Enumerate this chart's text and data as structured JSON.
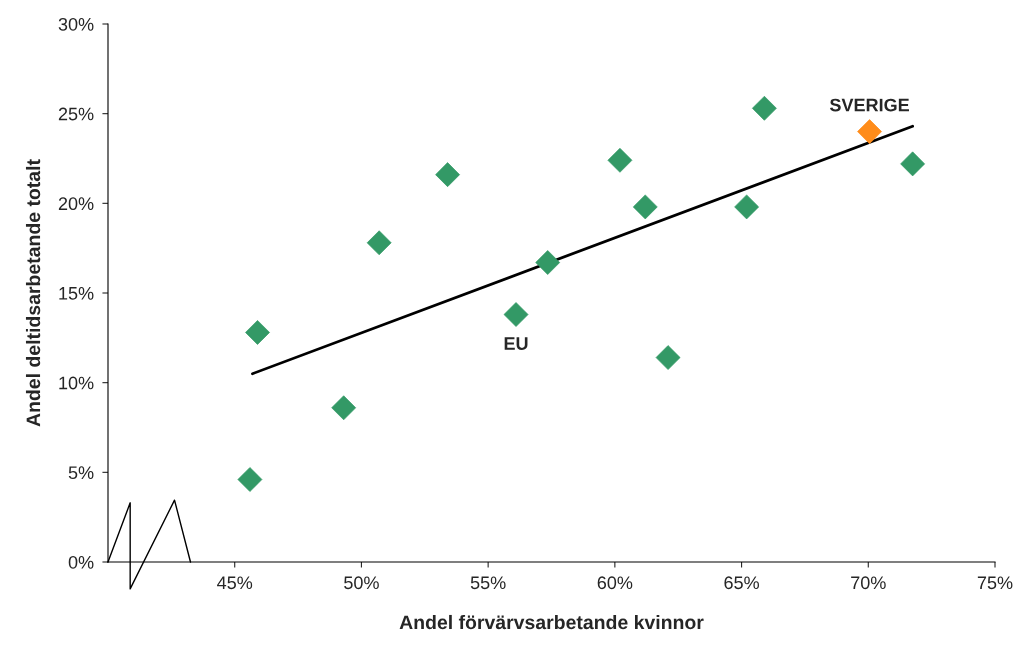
{
  "chart_data": {
    "type": "scatter",
    "xlabel": "Andel förvärvsarbetande kvinnor",
    "ylabel": "Andel deltidsarbetande totalt",
    "xlim": [
      40,
      75
    ],
    "ylim": [
      0,
      30
    ],
    "xticks": [
      {
        "value": 45,
        "label": "45%"
      },
      {
        "value": 50,
        "label": "50%"
      },
      {
        "value": 55,
        "label": "55%"
      },
      {
        "value": 60,
        "label": "60%"
      },
      {
        "value": 65,
        "label": "65%"
      },
      {
        "value": 70,
        "label": "70%"
      },
      {
        "value": 75,
        "label": "75%"
      }
    ],
    "yticks": [
      {
        "value": 0,
        "label": "0%"
      },
      {
        "value": 5,
        "label": "5%"
      },
      {
        "value": 10,
        "label": "10%"
      },
      {
        "value": 15,
        "label": "15%"
      },
      {
        "value": 20,
        "label": "20%"
      },
      {
        "value": 25,
        "label": "25%"
      },
      {
        "value": 30,
        "label": "30%"
      }
    ],
    "grid": false,
    "legend": false,
    "marker": "diamond",
    "series": [
      {
        "type": "line",
        "color": "#000000",
        "x": [
          45.7,
          71.75
        ],
        "values": [
          10.5,
          24.3
        ],
        "marker": "none",
        "line_style": "solid"
      },
      {
        "color": "#339966",
        "x": [
          45.6,
          45.9,
          49.3,
          50.7,
          53.4,
          56.1,
          57.35,
          60.2,
          61.2,
          62.1,
          65.2,
          65.9,
          71.75
        ],
        "values": [
          4.6,
          12.8,
          8.6,
          17.8,
          21.6,
          13.8,
          16.7,
          22.4,
          19.8,
          11.4,
          19.8,
          25.3,
          22.2
        ]
      },
      {
        "color": "#ff8c1a",
        "x": [
          70.05
        ],
        "values": [
          24.0
        ]
      }
    ],
    "annotations": [
      {
        "text": "SVERIGE",
        "x": 70.05,
        "y": 24.0
      },
      {
        "text": "EU",
        "x": 56.1,
        "y": 13.8
      }
    ]
  }
}
